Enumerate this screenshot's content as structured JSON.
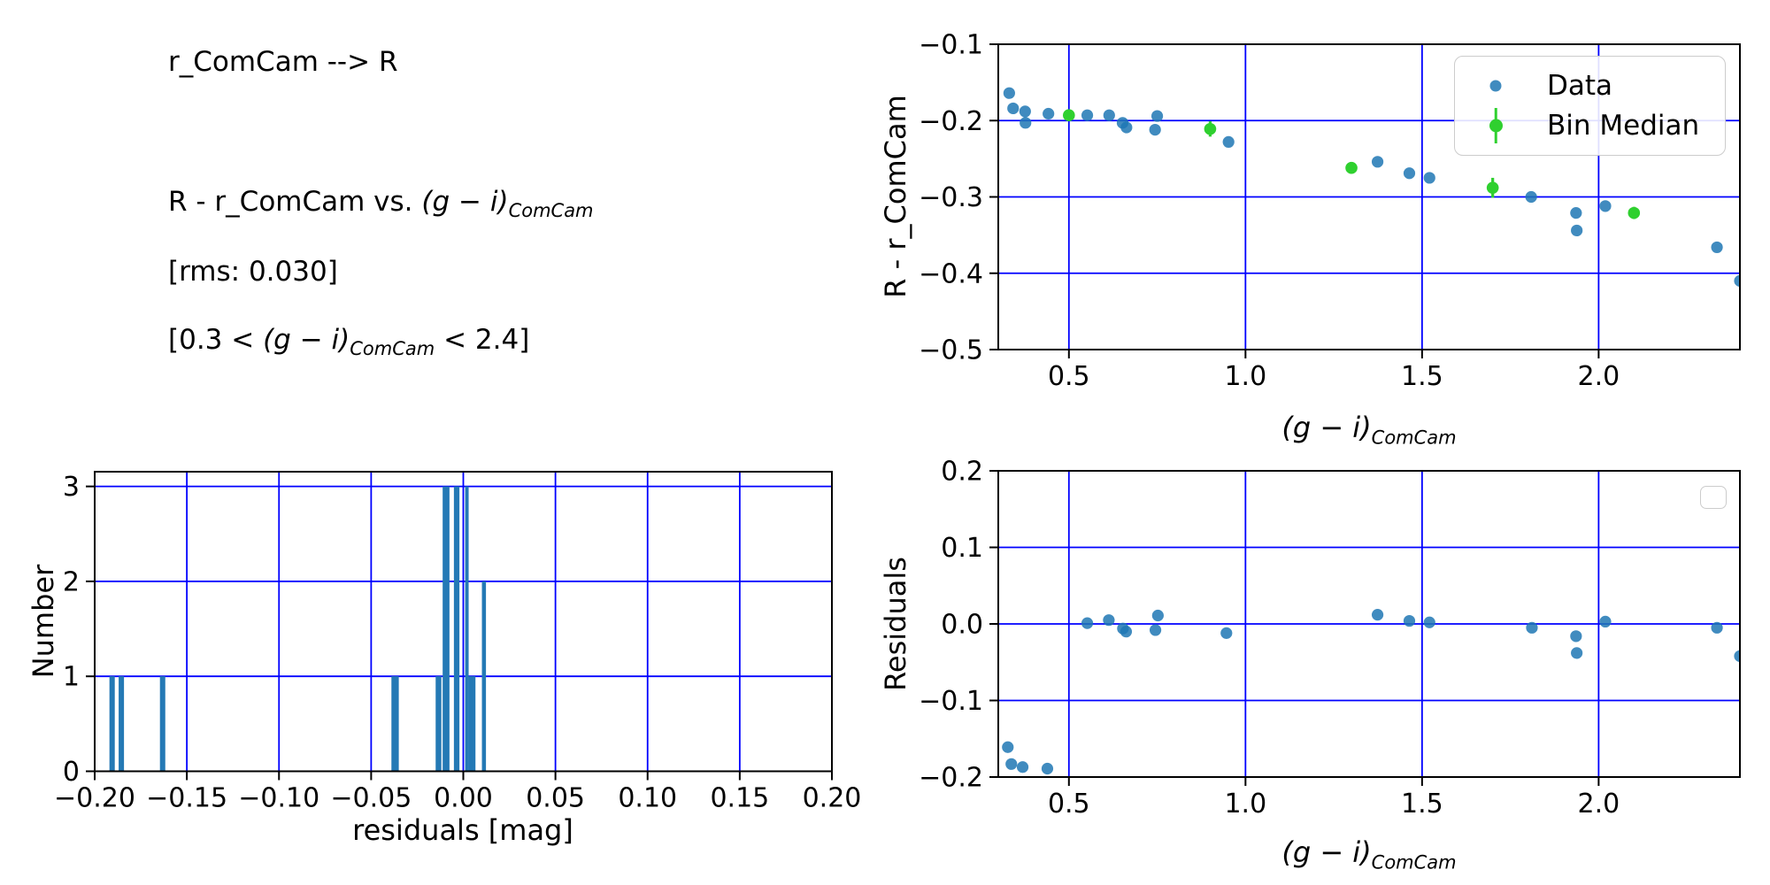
{
  "figure": {
    "annotations": {
      "title": "r_ComCam --> R",
      "relation_prefix": "R - r_ComCam vs. ",
      "gi_term": "(g − i)",
      "gi_subscript": "ComCam",
      "rms_line": "[rms: 0.030]",
      "range_prefix": "[0.3 < ",
      "range_suffix": " < 2.4]"
    },
    "legend": {
      "data_label": "Data",
      "bin_median_label": "Bin Median"
    },
    "colors": {
      "data_point": "#1f77b4",
      "data_point_opacity": 0.85,
      "bin_median": "#2fd02f",
      "grid": "#0000ff",
      "histogram_bar": "#2479b5",
      "spine": "#000000",
      "legend_border": "#cccccc",
      "text": "#000000"
    }
  },
  "chart_data": [
    {
      "id": "color_term_scatter",
      "type": "scatter",
      "title": "",
      "xlabel": "(g − i)_ComCam",
      "ylabel": "R - r_ComCam",
      "xlim": [
        0.3,
        2.4
      ],
      "ylim": [
        -0.5,
        -0.1
      ],
      "grid": true,
      "legend_position": "upper right",
      "xticks": [
        {
          "v": 0.5,
          "label": "0.5"
        },
        {
          "v": 1.0,
          "label": "1.0"
        },
        {
          "v": 1.5,
          "label": "1.5"
        },
        {
          "v": 2.0,
          "label": "2.0"
        }
      ],
      "yticks": [
        {
          "v": -0.1,
          "label": "−0.1"
        },
        {
          "v": -0.2,
          "label": "−0.2"
        },
        {
          "v": -0.3,
          "label": "−0.3"
        },
        {
          "v": -0.4,
          "label": "−0.4"
        },
        {
          "v": -0.5,
          "label": "−0.5"
        }
      ],
      "series": [
        {
          "name": "Data",
          "marker": "circle",
          "points": [
            [
              0.331,
              -0.164
            ],
            [
              0.342,
              -0.184
            ],
            [
              0.376,
              -0.188
            ],
            [
              0.377,
              -0.203
            ],
            [
              0.442,
              -0.191
            ],
            [
              0.552,
              -0.193
            ],
            [
              0.614,
              -0.193
            ],
            [
              0.652,
              -0.203
            ],
            [
              0.663,
              -0.209
            ],
            [
              0.744,
              -0.212
            ],
            [
              0.75,
              -0.194
            ],
            [
              0.952,
              -0.228
            ],
            [
              1.374,
              -0.254
            ],
            [
              1.464,
              -0.269
            ],
            [
              1.521,
              -0.275
            ],
            [
              1.809,
              -0.3
            ],
            [
              1.936,
              -0.321
            ],
            [
              1.938,
              -0.344
            ],
            [
              2.019,
              -0.312
            ],
            [
              2.335,
              -0.366
            ],
            [
              2.4,
              -0.41
            ]
          ]
        },
        {
          "name": "Bin Median",
          "marker": "circle_with_errorbar",
          "points": [
            {
              "x": 0.5,
              "y": -0.193,
              "err": 0.004
            },
            {
              "x": 0.9,
              "y": -0.211,
              "err": 0.01
            },
            {
              "x": 1.3,
              "y": -0.262,
              "err": 0.004
            },
            {
              "x": 1.7,
              "y": -0.288,
              "err": 0.013
            },
            {
              "x": 2.1,
              "y": -0.321,
              "err": 0.008
            }
          ]
        }
      ]
    },
    {
      "id": "residual_histogram",
      "type": "histogram",
      "title": "",
      "xlabel": "residuals [mag]",
      "ylabel": "Number",
      "xlim": [
        -0.2,
        0.2
      ],
      "ylim": [
        0,
        3.155
      ],
      "grid": true,
      "xticks": [
        {
          "v": -0.2,
          "label": "−0.20"
        },
        {
          "v": -0.15,
          "label": "−0.15"
        },
        {
          "v": -0.1,
          "label": "−0.10"
        },
        {
          "v": -0.05,
          "label": "−0.05"
        },
        {
          "v": 0.0,
          "label": "0.00"
        },
        {
          "v": 0.05,
          "label": "0.05"
        },
        {
          "v": 0.1,
          "label": "0.10"
        },
        {
          "v": 0.15,
          "label": "0.15"
        },
        {
          "v": 0.2,
          "label": "0.20"
        }
      ],
      "yticks": [
        {
          "v": 0,
          "label": "0"
        },
        {
          "v": 1,
          "label": "1"
        },
        {
          "v": 2,
          "label": "2"
        },
        {
          "v": 3,
          "label": "3"
        }
      ],
      "bars": [
        {
          "x0": -0.192,
          "x1": -0.1891,
          "count": 1
        },
        {
          "x0": -0.187,
          "x1": -0.1841,
          "count": 1
        },
        {
          "x0": -0.1646,
          "x1": -0.1617,
          "count": 1
        },
        {
          "x0": -0.039,
          "x1": -0.035,
          "count": 1
        },
        {
          "x0": -0.015,
          "x1": -0.0119,
          "count": 1
        },
        {
          "x0": -0.0112,
          "x1": -0.0075,
          "count": 3
        },
        {
          "x0": -0.0051,
          "x1": -0.0021,
          "count": 3
        },
        {
          "x0": 0.001,
          "x1": 0.0029,
          "count": 3
        },
        {
          "x0": 0.0029,
          "x1": 0.0066,
          "count": 1
        },
        {
          "x0": 0.0101,
          "x1": 0.0123,
          "count": 2
        }
      ]
    },
    {
      "id": "residual_scatter",
      "type": "scatter",
      "title": "",
      "xlabel": "(g − i)_ComCam",
      "ylabel": "Residuals",
      "xlim": [
        0.3,
        2.4
      ],
      "ylim": [
        -0.2,
        0.2
      ],
      "grid": true,
      "legend_position": "upper right (empty)",
      "xticks": [
        {
          "v": 0.5,
          "label": "0.5"
        },
        {
          "v": 1.0,
          "label": "1.0"
        },
        {
          "v": 1.5,
          "label": "1.5"
        },
        {
          "v": 2.0,
          "label": "2.0"
        }
      ],
      "yticks": [
        {
          "v": 0.2,
          "label": "0.2"
        },
        {
          "v": 0.1,
          "label": "0.1"
        },
        {
          "v": 0.0,
          "label": "0.0"
        },
        {
          "v": -0.1,
          "label": "−0.1"
        },
        {
          "v": -0.2,
          "label": "−0.2"
        }
      ],
      "series": [
        {
          "name": "Residuals",
          "marker": "circle",
          "points": [
            [
              0.327,
              -0.161
            ],
            [
              0.337,
              -0.183
            ],
            [
              0.369,
              -0.187
            ],
            [
              0.439,
              -0.189
            ],
            [
              0.552,
              0.001
            ],
            [
              0.613,
              0.005
            ],
            [
              0.653,
              -0.006
            ],
            [
              0.662,
              -0.01
            ],
            [
              0.745,
              -0.008
            ],
            [
              0.752,
              0.011
            ],
            [
              0.946,
              -0.012
            ],
            [
              1.374,
              0.012
            ],
            [
              1.464,
              0.004
            ],
            [
              1.521,
              0.002
            ],
            [
              1.811,
              -0.005
            ],
            [
              1.936,
              -0.016
            ],
            [
              1.938,
              -0.038
            ],
            [
              2.019,
              0.003
            ],
            [
              2.335,
              -0.005
            ],
            [
              2.4,
              -0.042
            ]
          ]
        }
      ]
    }
  ]
}
